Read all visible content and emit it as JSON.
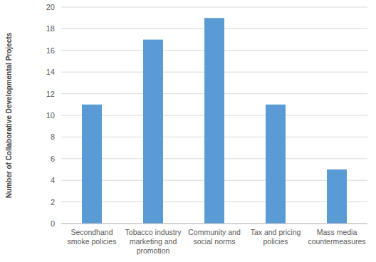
{
  "chart_data": {
    "type": "bar",
    "y_label": "Number of Collaborative Developmental Projects",
    "categories": [
      "Secondhand smoke policies",
      "Tobacco industry marketing and promotion",
      "Community and social norms",
      "Tax and pricing policies",
      "Mass media countermeasures"
    ],
    "values": [
      11,
      17,
      19,
      11,
      5
    ],
    "color": "#5b9bd5",
    "ylim": [
      0,
      20
    ],
    "yticks": [
      0,
      2,
      4,
      6,
      8,
      10,
      12,
      14,
      16,
      18,
      20
    ],
    "grid": true
  }
}
